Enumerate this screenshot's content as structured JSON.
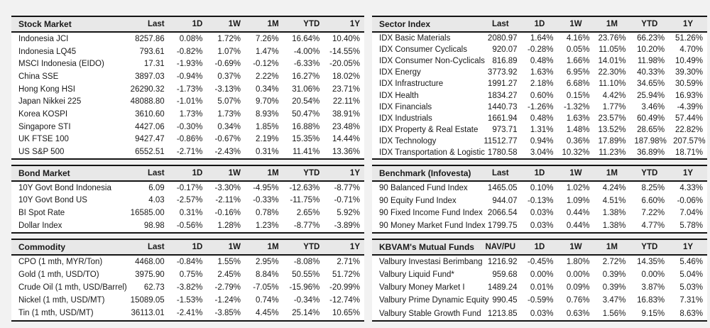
{
  "page": {
    "background_color": "#f2f2f2",
    "table_background_color": "#ffffff",
    "header_background_color": "#e8e8e8",
    "border_color": "#141414",
    "text_color": "#191919"
  },
  "tables": [
    {
      "id": "stock-market",
      "title": "Stock Market",
      "columns": [
        "Last",
        "1D",
        "1W",
        "1M",
        "YTD",
        "1Y"
      ],
      "rows": [
        {
          "name": "Indonesia JCI",
          "values": [
            "8257.86",
            "0.08%",
            "1.72%",
            "7.26%",
            "16.64%",
            "10.40%"
          ]
        },
        {
          "name": "Indonesia LQ45",
          "values": [
            "793.61",
            "-0.82%",
            "1.07%",
            "1.47%",
            "-4.00%",
            "-14.55%"
          ]
        },
        {
          "name": "MSCI Indonesia (EIDO)",
          "values": [
            "17.31",
            "-1.93%",
            "-0.69%",
            "-0.12%",
            "-6.33%",
            "-20.05%"
          ]
        },
        {
          "name": "China SSE",
          "values": [
            "3897.03",
            "-0.94%",
            "0.37%",
            "2.22%",
            "16.27%",
            "18.02%"
          ]
        },
        {
          "name": "Hong Kong HSI",
          "values": [
            "26290.32",
            "-1.73%",
            "-3.13%",
            "0.34%",
            "31.06%",
            "23.71%"
          ]
        },
        {
          "name": "Japan Nikkei 225",
          "values": [
            "48088.80",
            "-1.01%",
            "5.07%",
            "9.70%",
            "20.54%",
            "22.11%"
          ]
        },
        {
          "name": "Korea KOSPI",
          "values": [
            "3610.60",
            "1.73%",
            "1.73%",
            "8.93%",
            "50.47%",
            "38.91%"
          ]
        },
        {
          "name": "Singapore STI",
          "values": [
            "4427.06",
            "-0.30%",
            "0.34%",
            "1.85%",
            "16.88%",
            "23.48%"
          ]
        },
        {
          "name": "UK FTSE 100",
          "values": [
            "9427.47",
            "-0.86%",
            "-0.67%",
            "2.19%",
            "15.35%",
            "14.44%"
          ]
        },
        {
          "name": "US S&P 500",
          "values": [
            "6552.51",
            "-2.71%",
            "-2.43%",
            "0.31%",
            "11.41%",
            "13.36%"
          ]
        }
      ]
    },
    {
      "id": "bond-market",
      "title": "Bond Market",
      "columns": [
        "Last",
        "1D",
        "1W",
        "1M",
        "YTD",
        "1Y"
      ],
      "rows": [
        {
          "name": "10Y Govt Bond Indonesia",
          "values": [
            "6.09",
            "-0.17%",
            "-3.30%",
            "-4.95%",
            "-12.63%",
            "-8.77%"
          ]
        },
        {
          "name": "10Y Govt Bond US",
          "values": [
            "4.03",
            "-2.57%",
            "-2.11%",
            "-0.33%",
            "-11.75%",
            "-0.71%"
          ]
        },
        {
          "name": "BI Spot Rate",
          "values": [
            "16585.00",
            "0.31%",
            "-0.16%",
            "0.78%",
            "2.65%",
            "5.92%"
          ]
        },
        {
          "name": "Dollar Index",
          "values": [
            "98.98",
            "-0.56%",
            "1.28%",
            "1.23%",
            "-8.77%",
            "-3.89%"
          ]
        }
      ]
    },
    {
      "id": "commodity",
      "title": "Commodity",
      "columns": [
        "Last",
        "1D",
        "1W",
        "1M",
        "YTD",
        "1Y"
      ],
      "rows": [
        {
          "name": "CPO (1 mth, MYR/Ton)",
          "values": [
            "4468.00",
            "-0.84%",
            "1.55%",
            "2.95%",
            "-8.08%",
            "2.71%"
          ]
        },
        {
          "name": "Gold (1 mth, USD/TO)",
          "values": [
            "3975.90",
            "0.75%",
            "2.45%",
            "8.84%",
            "50.55%",
            "51.72%"
          ]
        },
        {
          "name": "Crude Oil (1 mth, USD/Barrel)",
          "values": [
            "62.73",
            "-3.82%",
            "-2.79%",
            "-7.05%",
            "-15.96%",
            "-20.99%"
          ]
        },
        {
          "name": "Nickel (1 mth, USD/MT)",
          "values": [
            "15089.05",
            "-1.53%",
            "-1.24%",
            "0.74%",
            "-0.34%",
            "-12.74%"
          ]
        },
        {
          "name": "Tin (1 mth, USD/MT)",
          "values": [
            "36113.01",
            "-2.41%",
            "-3.85%",
            "4.45%",
            "25.14%",
            "10.65%"
          ]
        }
      ]
    },
    {
      "id": "sector-index",
      "title": "Sector Index",
      "columns": [
        "Last",
        "1D",
        "1W",
        "1M",
        "YTD",
        "1Y"
      ],
      "rows": [
        {
          "name": "IDX Basic Materials",
          "values": [
            "2080.97",
            "1.64%",
            "4.16%",
            "23.76%",
            "66.23%",
            "51.26%"
          ]
        },
        {
          "name": "IDX Consumer Cyclicals",
          "values": [
            "920.07",
            "-0.28%",
            "0.05%",
            "11.05%",
            "10.20%",
            "4.70%"
          ]
        },
        {
          "name": "IDX Consumer Non-Cyclicals",
          "values": [
            "816.89",
            "0.48%",
            "1.66%",
            "14.01%",
            "11.98%",
            "10.49%"
          ]
        },
        {
          "name": "IDX Energy",
          "values": [
            "3773.92",
            "1.63%",
            "6.95%",
            "22.30%",
            "40.33%",
            "39.30%"
          ]
        },
        {
          "name": "IDX Infrastructure",
          "values": [
            "1991.27",
            "2.18%",
            "6.68%",
            "11.10%",
            "34.65%",
            "30.59%"
          ]
        },
        {
          "name": "IDX Health",
          "values": [
            "1834.27",
            "0.60%",
            "0.15%",
            "4.42%",
            "25.94%",
            "16.93%"
          ]
        },
        {
          "name": "IDX Financials",
          "values": [
            "1440.73",
            "-1.26%",
            "-1.32%",
            "1.77%",
            "3.46%",
            "-4.39%"
          ]
        },
        {
          "name": "IDX Industrials",
          "values": [
            "1661.94",
            "0.48%",
            "1.63%",
            "23.57%",
            "60.49%",
            "57.44%"
          ]
        },
        {
          "name": "IDX Property & Real Estate",
          "values": [
            "973.71",
            "1.31%",
            "1.48%",
            "13.52%",
            "28.65%",
            "22.82%"
          ]
        },
        {
          "name": "IDX Technology",
          "values": [
            "11512.77",
            "0.94%",
            "0.36%",
            "17.89%",
            "187.98%",
            "207.57%"
          ]
        },
        {
          "name": "IDX Transportation & Logistic",
          "values": [
            "1780.58",
            "3.04%",
            "10.32%",
            "11.23%",
            "36.89%",
            "18.71%"
          ]
        }
      ]
    },
    {
      "id": "benchmark-infovesta",
      "title": "Benchmark (Infovesta)",
      "columns": [
        "Last",
        "1D",
        "1W",
        "1M",
        "YTD",
        "1Y"
      ],
      "rows": [
        {
          "name": "90 Balanced Fund Index",
          "values": [
            "1465.05",
            "0.10%",
            "1.02%",
            "4.24%",
            "8.25%",
            "4.33%"
          ]
        },
        {
          "name": "90 Equity Fund Index",
          "values": [
            "944.07",
            "-0.13%",
            "1.09%",
            "4.51%",
            "6.60%",
            "-0.06%"
          ]
        },
        {
          "name": "90 Fixed Income Fund Index",
          "values": [
            "2066.54",
            "0.03%",
            "0.44%",
            "1.38%",
            "7.22%",
            "7.04%"
          ]
        },
        {
          "name": "90 Money Market Fund Index",
          "values": [
            "1799.75",
            "0.03%",
            "0.44%",
            "1.38%",
            "4.77%",
            "5.78%"
          ]
        }
      ]
    },
    {
      "id": "kbvam-mutual-funds",
      "title": "KBVAM's Mutual Funds",
      "columns": [
        "NAV/PU",
        "1D",
        "1W",
        "1M",
        "YTD",
        "1Y"
      ],
      "rows": [
        {
          "name": "Valbury Investasi Berimbang",
          "values": [
            "1216.92",
            "-0.45%",
            "1.80%",
            "2.72%",
            "14.35%",
            "5.46%"
          ]
        },
        {
          "name": "Valbury Liquid Fund*",
          "values": [
            "959.68",
            "0.00%",
            "0.00%",
            "0.39%",
            "0.00%",
            "5.04%"
          ]
        },
        {
          "name": "Valbury Money Market I",
          "values": [
            "1489.24",
            "0.01%",
            "0.09%",
            "0.39%",
            "3.87%",
            "5.03%"
          ]
        },
        {
          "name": "Valbury Prime Dynamic Equity",
          "values": [
            "990.45",
            "-0.59%",
            "0.76%",
            "3.47%",
            "16.83%",
            "7.31%"
          ]
        },
        {
          "name": "Valbury Stable Growth Fund",
          "values": [
            "1213.85",
            "0.03%",
            "0.63%",
            "1.56%",
            "9.15%",
            "8.63%"
          ]
        }
      ]
    }
  ]
}
